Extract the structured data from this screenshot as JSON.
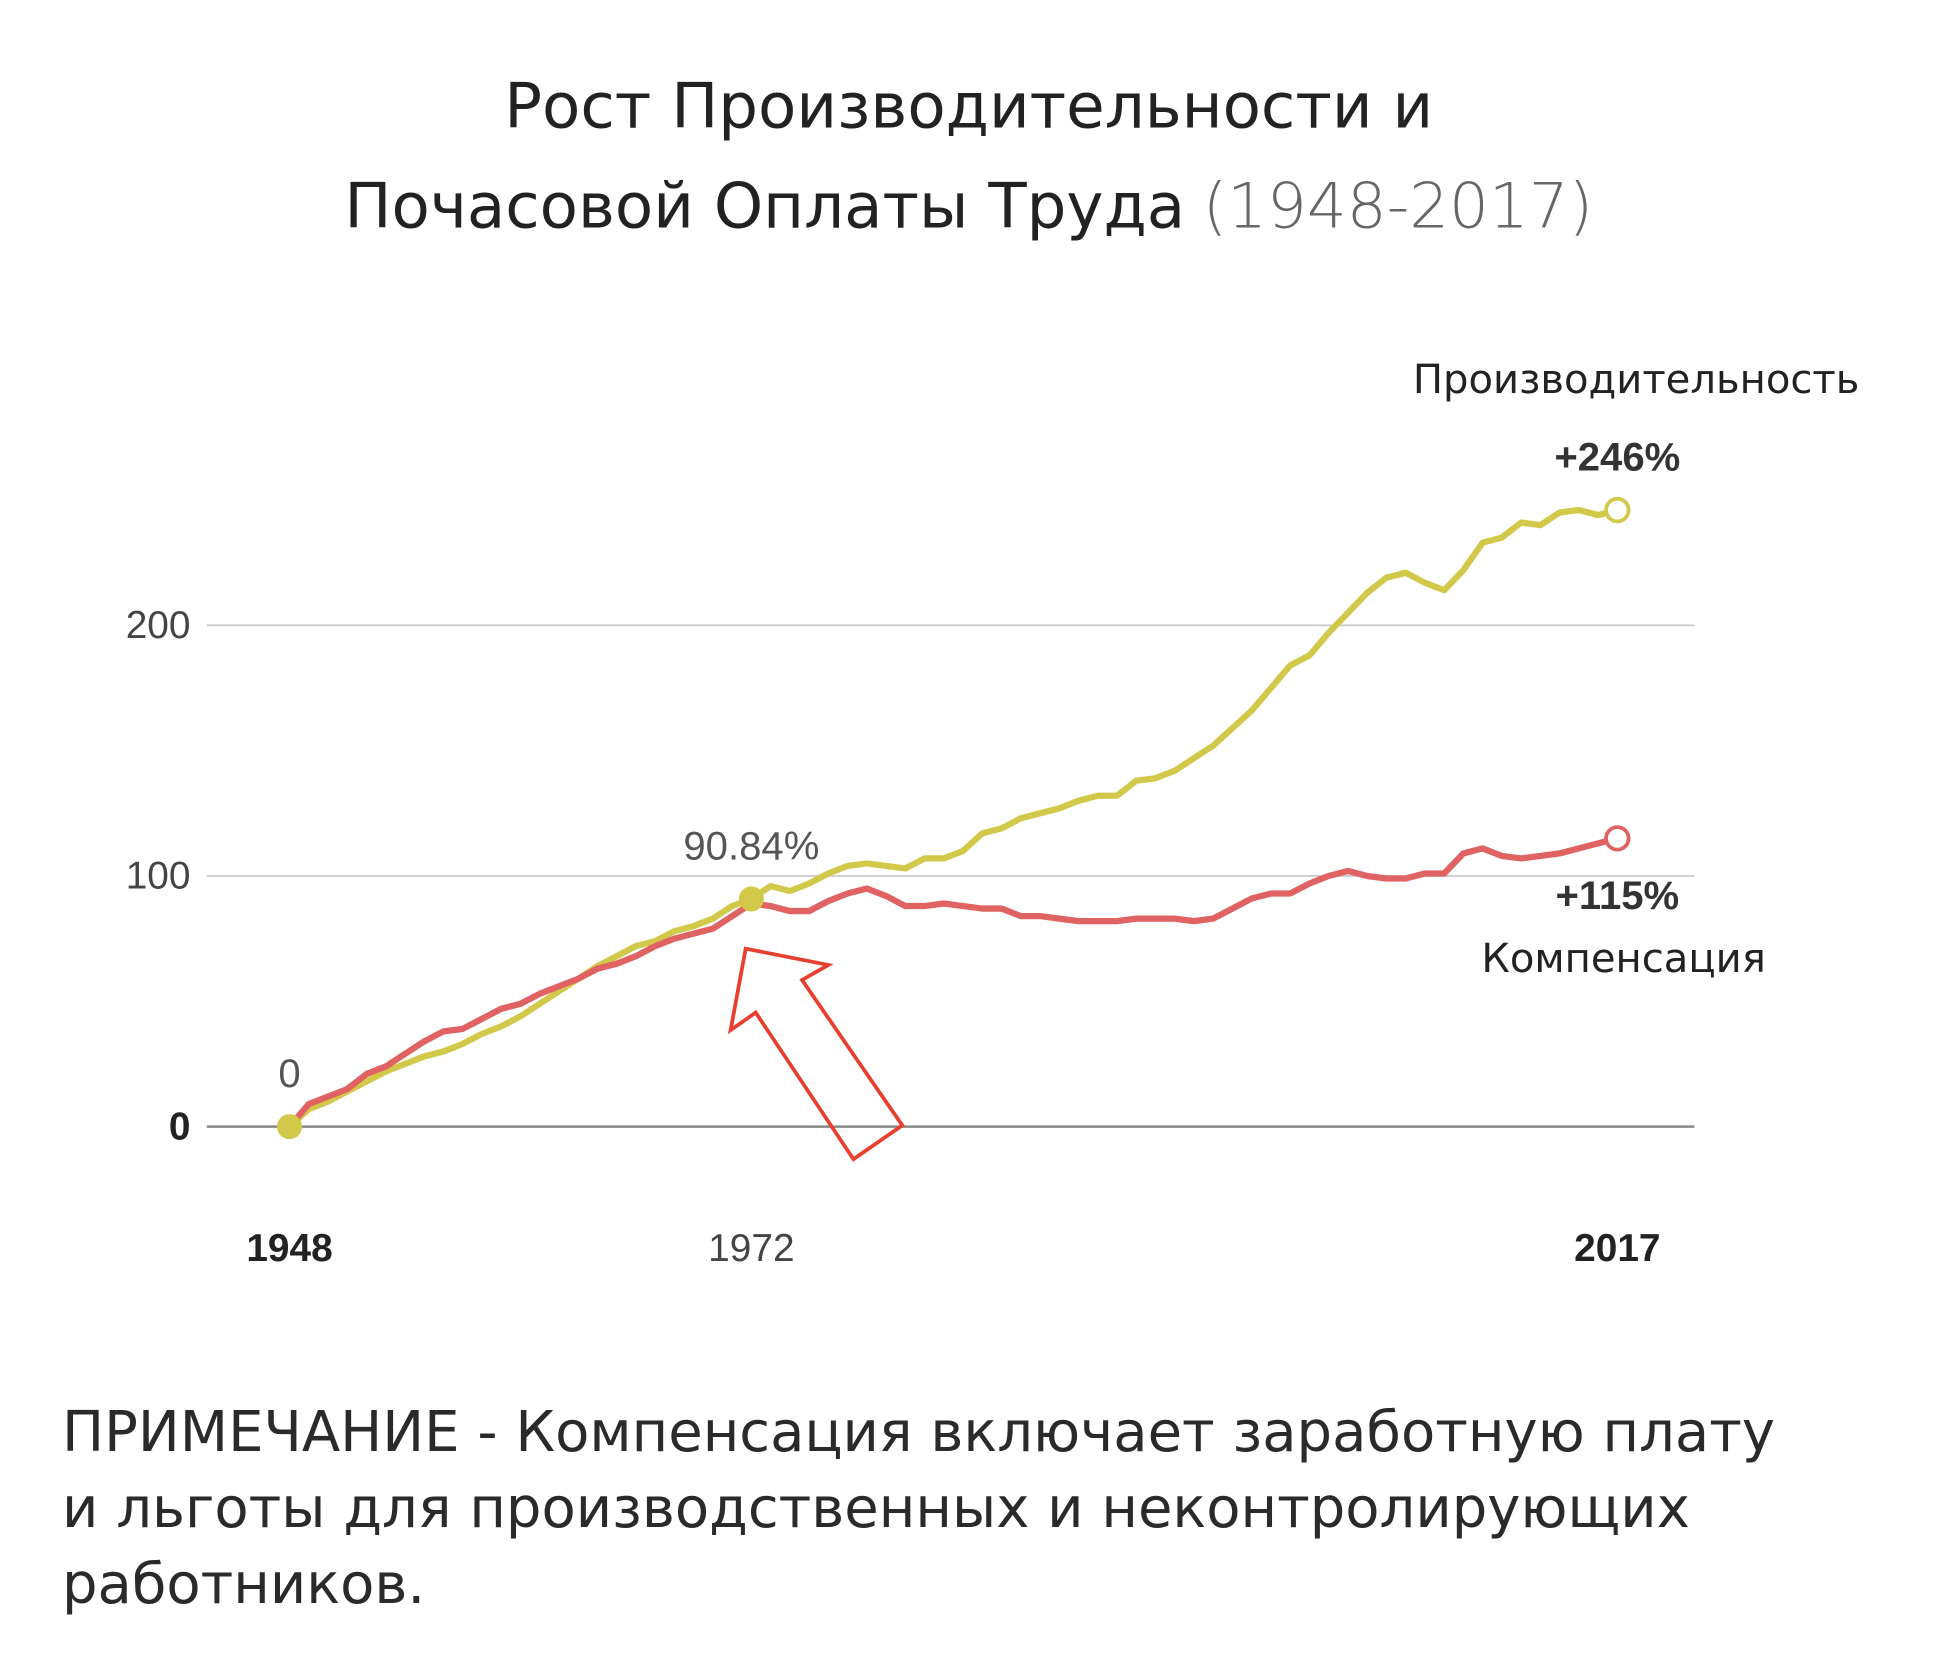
{
  "chart_data": {
    "type": "line",
    "title": [
      "Рост Производительности и",
      "Почасовой Оплаты Труда"
    ],
    "subtitle": "(1948-2017)",
    "x": [
      1948,
      1949,
      1950,
      1951,
      1952,
      1953,
      1954,
      1955,
      1956,
      1957,
      1958,
      1959,
      1960,
      1961,
      1962,
      1963,
      1964,
      1965,
      1966,
      1967,
      1968,
      1969,
      1970,
      1971,
      1972,
      1973,
      1974,
      1975,
      1976,
      1977,
      1978,
      1979,
      1980,
      1981,
      1982,
      1983,
      1984,
      1985,
      1986,
      1987,
      1988,
      1989,
      1990,
      1991,
      1992,
      1993,
      1994,
      1995,
      1996,
      1997,
      1998,
      1999,
      2000,
      2001,
      2002,
      2003,
      2004,
      2005,
      2006,
      2007,
      2008,
      2009,
      2010,
      2011,
      2012,
      2013,
      2014,
      2015,
      2016,
      2017
    ],
    "series": [
      {
        "name": "Производительность",
        "color": "#d2c94a",
        "values": [
          0,
          7,
          10,
          14,
          18,
          22,
          25,
          28,
          30,
          33,
          37,
          40,
          44,
          49,
          54,
          59,
          64,
          68,
          72,
          74,
          78,
          80,
          83,
          88,
          90.84,
          96,
          94,
          97,
          101,
          104,
          105,
          104,
          103,
          107,
          107,
          110,
          117,
          119,
          123,
          125,
          127,
          130,
          132,
          132,
          138,
          139,
          142,
          147,
          152,
          159,
          166,
          175,
          184,
          188,
          197,
          205,
          213,
          219,
          221,
          217,
          214,
          222,
          233,
          235,
          241,
          240,
          245,
          246,
          244,
          246
        ],
        "value_labels": [
          "0",
          null,
          null,
          null,
          null,
          null,
          null,
          null,
          null,
          null,
          null,
          null,
          null,
          null,
          null,
          null,
          null,
          null,
          null,
          null,
          null,
          null,
          null,
          null,
          "90.84%",
          null,
          null,
          null,
          null,
          null,
          null,
          null,
          null,
          null,
          null,
          null,
          null,
          null,
          null,
          null,
          null,
          null,
          null,
          null,
          null,
          null,
          null,
          null,
          null,
          null,
          null,
          null,
          null,
          null,
          null,
          null,
          null,
          null,
          null,
          null,
          null,
          null,
          null,
          null,
          null,
          null,
          null,
          null,
          null,
          "+246%"
        ]
      },
      {
        "name": "Компенсация",
        "color": "#e06262",
        "values": [
          0,
          9,
          12,
          15,
          21,
          24,
          29,
          34,
          38,
          39,
          43,
          47,
          49,
          53,
          56,
          59,
          63,
          65,
          68,
          72,
          75,
          77,
          79,
          84,
          89,
          88,
          86,
          86,
          90,
          93,
          95,
          92,
          88,
          88,
          89,
          88,
          87,
          87,
          84,
          84,
          83,
          82,
          82,
          82,
          83,
          83,
          83,
          82,
          83,
          87,
          91,
          93,
          93,
          97,
          100,
          102,
          100,
          99,
          99,
          101,
          101,
          109,
          111,
          108,
          107,
          108,
          109,
          111,
          113,
          115
        ],
        "value_labels": [
          null,
          null,
          null,
          null,
          null,
          null,
          null,
          null,
          null,
          null,
          null,
          null,
          null,
          null,
          null,
          null,
          null,
          null,
          null,
          null,
          null,
          null,
          null,
          null,
          null,
          null,
          null,
          null,
          null,
          null,
          null,
          null,
          null,
          null,
          null,
          null,
          null,
          null,
          null,
          null,
          null,
          null,
          null,
          null,
          null,
          null,
          null,
          null,
          null,
          null,
          null,
          null,
          null,
          null,
          null,
          null,
          null,
          null,
          null,
          null,
          null,
          null,
          null,
          null,
          null,
          null,
          null,
          null,
          null,
          "+115%"
        ]
      }
    ],
    "xlim": [
      1943.7,
      2021
    ],
    "xticks": [
      1948,
      1972,
      2017
    ],
    "ylim": [
      -20,
      260
    ],
    "yticks": [
      0,
      100,
      200
    ],
    "grid": true,
    "note": "ПРИМЕЧАНИЕ - Компенсация включает заработную плату и льготы для производственных и неконтролирующих работников."
  }
}
